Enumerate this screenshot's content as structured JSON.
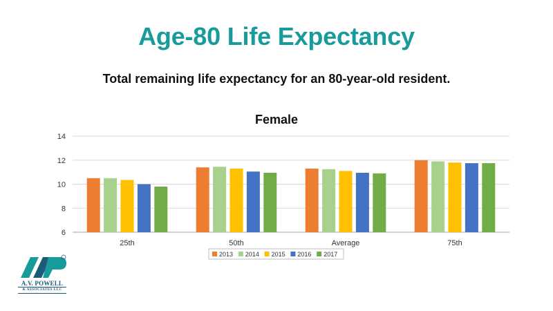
{
  "slide": {
    "title": "Age-80 Life Expectancy",
    "subtitle": "Total remaining life expectancy for an 80-year-old resident."
  },
  "logo": {
    "mark": "AVP",
    "name": "A.V. POWELL",
    "sub": "& ASSOCIATES LLC",
    "colors": {
      "primary": "#1d5a7a",
      "accent": "#1a9b9b"
    }
  },
  "chart_data": {
    "type": "bar",
    "title": "Female",
    "xlabel": "",
    "ylabel": "",
    "ylim": [
      6,
      14
    ],
    "yticks": [
      "6",
      "8",
      "10",
      "12",
      "14"
    ],
    "grid": true,
    "legend_position": "bottom",
    "categories": [
      "25th",
      "50th",
      "Average",
      "75th"
    ],
    "series": [
      {
        "name": "2013",
        "color": "#ed7d31",
        "values": [
          10.5,
          11.4,
          11.3,
          12.0
        ]
      },
      {
        "name": "2014",
        "color": "#a9d18e",
        "values": [
          10.5,
          11.45,
          11.25,
          11.9
        ]
      },
      {
        "name": "2015",
        "color": "#ffc000",
        "values": [
          10.35,
          11.3,
          11.1,
          11.8
        ]
      },
      {
        "name": "2016",
        "color": "#4472c4",
        "values": [
          10.0,
          11.05,
          10.95,
          11.75
        ]
      },
      {
        "name": "2017",
        "color": "#70ad47",
        "values": [
          9.8,
          10.95,
          10.9,
          11.75
        ]
      }
    ]
  }
}
